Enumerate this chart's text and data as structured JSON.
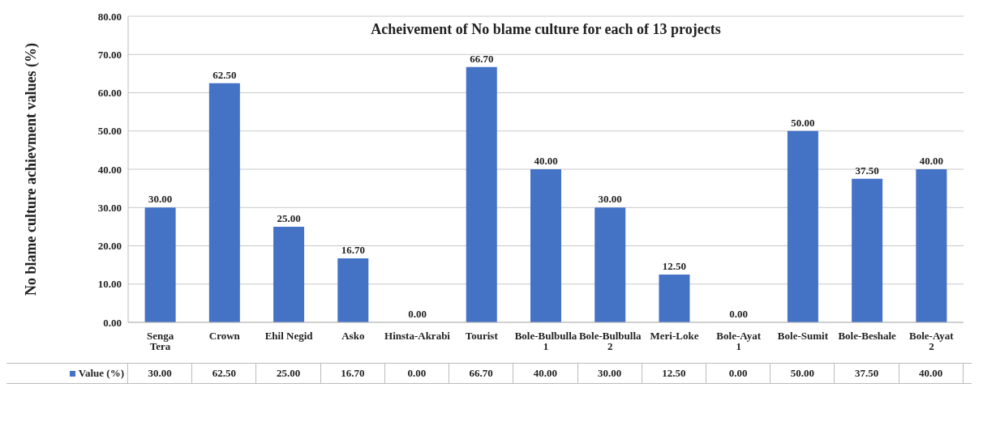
{
  "chart_data": {
    "type": "bar",
    "title": "Acheivement of No blame culture for each of 13 projects",
    "ylabel": "No blame culture achievment values (%)",
    "categories": [
      "Senga Tera",
      "Crown",
      "Ehil Negid",
      "Asko",
      "Hinsta-Akrabi",
      "Tourist",
      "Bole-Bulbulla 1",
      "Bole-Bulbulla 2",
      "Meri-Loke",
      "Bole-Ayat 1",
      "Bole-Sumit",
      "Bole-Beshale",
      "Bole-Ayat 2"
    ],
    "series": [
      {
        "name": "Value (%)",
        "color": "#4472c4",
        "values": [
          30,
          62.5,
          25,
          16.7,
          0,
          66.7,
          40,
          30,
          12.5,
          0,
          50,
          37.5,
          40
        ],
        "value_labels": [
          "30.00",
          "62.50",
          "25.00",
          "16.70",
          "0.00",
          "66.70",
          "40.00",
          "30.00",
          "12.50",
          "0.00",
          "50.00",
          "37.50",
          "40.00"
        ]
      }
    ],
    "ylim": [
      0,
      80
    ],
    "yticks": [
      {
        "value": 0,
        "label": "0.00"
      },
      {
        "value": 10,
        "label": "10.00"
      },
      {
        "value": 20,
        "label": "20.00"
      },
      {
        "value": 30,
        "label": "30.00"
      },
      {
        "value": 40,
        "label": "40.00"
      },
      {
        "value": 50,
        "label": "50.00"
      },
      {
        "value": 60,
        "label": "60.00"
      },
      {
        "value": 70,
        "label": "70.00"
      },
      {
        "value": 80,
        "label": "80.00"
      }
    ],
    "grid": "y",
    "legend": "bottom"
  }
}
